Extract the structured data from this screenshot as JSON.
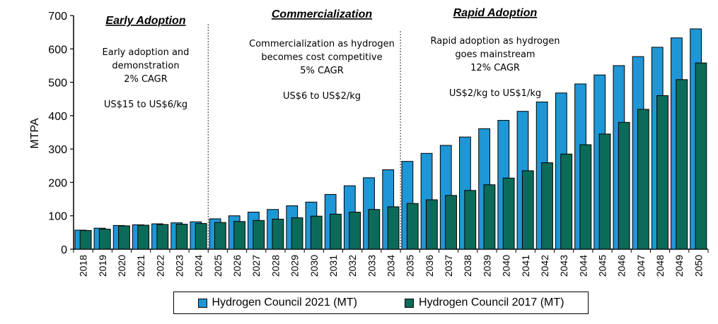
{
  "chart_data": {
    "type": "bar",
    "title": "",
    "xlabel": "",
    "ylabel": "MTPA",
    "ylim": [
      0,
      700
    ],
    "yticks": [
      0,
      100,
      200,
      300,
      400,
      500,
      600,
      700
    ],
    "grid": false,
    "legend_position": "bottom",
    "categories": [
      "2018",
      "2019",
      "2020",
      "2021",
      "2022",
      "2023",
      "2024",
      "2025",
      "2026",
      "2027",
      "2028",
      "2029",
      "2030",
      "2031",
      "2032",
      "2033",
      "2034",
      "2035",
      "2036",
      "2037",
      "2038",
      "2039",
      "2040",
      "2041",
      "2042",
      "2043",
      "2044",
      "2045",
      "2046",
      "2047",
      "2048",
      "2049",
      "2050"
    ],
    "series": [
      {
        "name": "Hydrogen Council 2021 (MT)",
        "color": "#1f96d6",
        "values": [
          57,
          63,
          71,
          73,
          76,
          79,
          82,
          91,
          100,
          111,
          119,
          130,
          141,
          164,
          190,
          214,
          238,
          263,
          287,
          311,
          336,
          361,
          386,
          413,
          441,
          468,
          495,
          522,
          550,
          577,
          605,
          633,
          660
        ]
      },
      {
        "name": "Hydrogen Council 2017 (MT)",
        "color": "#0c6b58",
        "values": [
          56,
          60,
          70,
          72,
          74,
          75,
          77,
          80,
          83,
          86,
          90,
          94,
          99,
          105,
          111,
          119,
          127,
          137,
          148,
          161,
          176,
          193,
          213,
          235,
          259,
          285,
          313,
          345,
          380,
          419,
          460,
          508,
          558
        ]
      }
    ],
    "phases": [
      {
        "title": "Early Adoption",
        "lines": [
          "Early adoption and",
          "demonstration",
          "2% CAGR",
          "",
          "US$15 to US$6/kg"
        ]
      },
      {
        "title": "Commercialization",
        "lines": [
          "Commercialization as hydrogen",
          "becomes cost competitive",
          "5% CAGR",
          "",
          "US$6 to US$2/kg"
        ]
      },
      {
        "title": "Rapid Adoption",
        "lines": [
          "Rapid adoption as hydrogen",
          "goes mainstream",
          "12% CAGR",
          "",
          "US$2/kg to US$1/kg"
        ]
      }
    ],
    "phase_dividers_after": [
      "2024",
      "2034"
    ]
  }
}
